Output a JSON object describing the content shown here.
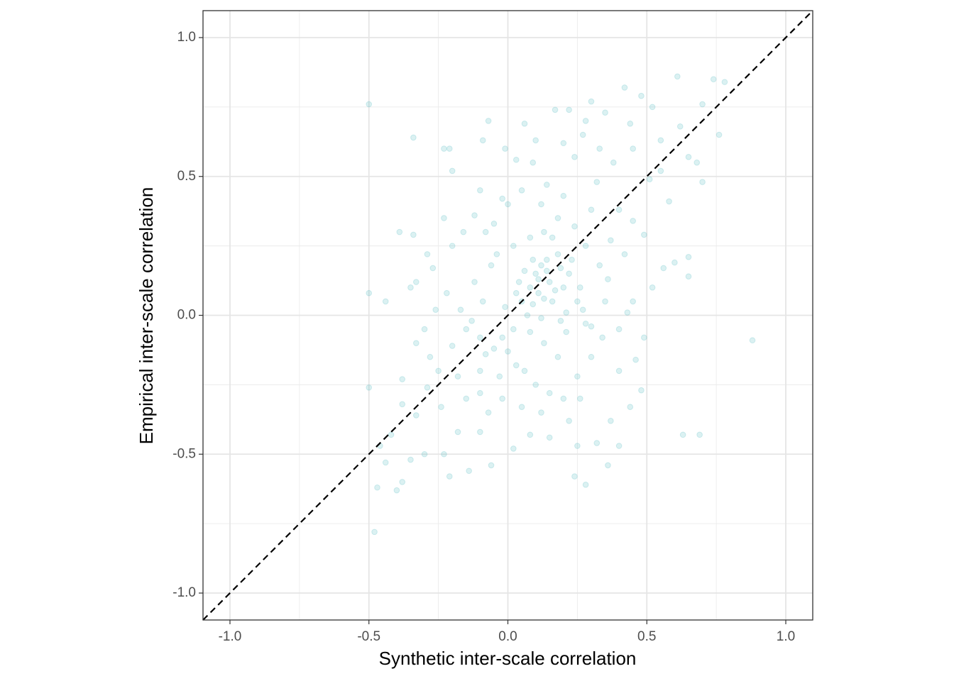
{
  "chart_data": {
    "type": "scatter",
    "x_label": "Synthetic inter-scale correlation",
    "y_label": "Empirical inter-scale correlation",
    "color": "#3aafb9",
    "opacity": 0.18,
    "grid": true,
    "xlim": [
      -1.097,
      1.097
    ],
    "ylim": [
      -1.097,
      1.097
    ],
    "xticks": [
      {
        "value": -1.0,
        "label": "-1.0"
      },
      {
        "value": -0.5,
        "label": "-0.5"
      },
      {
        "value": 0.0,
        "label": "0.0"
      },
      {
        "value": 0.5,
        "label": "0.5"
      },
      {
        "value": 1.0,
        "label": "1.0"
      }
    ],
    "yticks": [
      {
        "value": -1.0,
        "label": "-1.0"
      },
      {
        "value": -0.5,
        "label": "-0.5"
      },
      {
        "value": 0.0,
        "label": "0.0"
      },
      {
        "value": 0.5,
        "label": "0.5"
      },
      {
        "value": 1.0,
        "label": "1.0"
      }
    ],
    "x_minor_grid": [
      -0.75,
      -0.25,
      0.25,
      0.75
    ],
    "y_minor_grid": [
      -0.75,
      -0.25,
      0.25,
      0.75
    ],
    "reference_line": {
      "slope": 1,
      "intercept": 0,
      "style": "dashed"
    },
    "x": [
      -0.5,
      -0.34,
      0.88,
      -0.48,
      -0.5,
      -0.5,
      0.63,
      0.69,
      0.78,
      0.61,
      0.74,
      0.7,
      0.76,
      0.68,
      0.7,
      0.58,
      0.65,
      0.65,
      0.48,
      0.42,
      0.3,
      0.17,
      0.22,
      0.35,
      0.06,
      0.24,
      -0.07,
      -0.09,
      -0.23,
      -0.21,
      -0.2,
      -0.34,
      -0.23,
      -0.12,
      -0.05,
      0.0,
      0.03,
      0.09,
      0.14,
      0.2,
      0.33,
      0.45,
      0.51,
      0.55,
      0.38,
      0.4,
      0.45,
      0.49,
      0.56,
      0.6,
      0.65,
      0.52,
      0.45,
      0.43,
      0.4,
      0.49,
      0.46,
      0.4,
      0.44,
      0.48,
      0.37,
      0.4,
      0.32,
      0.25,
      0.24,
      0.28,
      0.36,
      0.15,
      0.08,
      0.02,
      -0.1,
      -0.18,
      -0.23,
      -0.21,
      -0.14,
      -0.06,
      -0.3,
      -0.35,
      -0.38,
      -0.4,
      -0.44,
      -0.47,
      -0.42,
      -0.38,
      -0.33,
      -0.29,
      -0.25,
      -0.28,
      -0.38,
      -0.46,
      -0.2,
      -0.15,
      -0.17,
      -0.22,
      -0.27,
      -0.33,
      -0.35,
      -0.44,
      -0.39,
      -0.29,
      0.1,
      0.12,
      0.15,
      0.08,
      0.14,
      0.18,
      0.11,
      0.05,
      0.2,
      0.22,
      0.16,
      0.25,
      0.28,
      0.3,
      0.26,
      0.19,
      0.12,
      0.07,
      0.02,
      -0.02,
      -0.05,
      -0.08,
      0.0,
      0.03,
      0.06,
      -0.03,
      -0.1,
      0.1,
      0.15,
      0.2,
      0.25,
      0.3,
      0.34,
      0.35,
      0.33,
      0.28,
      0.24,
      0.18,
      0.13,
      0.08,
      0.02,
      -0.04,
      -0.08,
      -0.06,
      -0.12,
      -0.09,
      -0.13,
      -0.01,
      0.04,
      0.09,
      0.3,
      0.37,
      0.42,
      0.36,
      0.26,
      0.22,
      0.12,
      0.05,
      -0.02,
      -0.07,
      -0.15,
      -0.18,
      -0.24,
      -0.1,
      0.18,
      0.13,
      0.08,
      0.21,
      0.27,
      0.16,
      0.12,
      0.05,
      -0.02,
      -0.1,
      -0.16,
      -0.2,
      -0.26,
      -0.3,
      -0.33,
      -0.1,
      0.14,
      0.11,
      0.17,
      0.09,
      0.23,
      0.06,
      0.19,
      0.13,
      0.03,
      0.21,
      0.32,
      0.27,
      0.2,
      0.44,
      0.55,
      0.52,
      0.62,
      0.28,
      -0.01,
      0.1
    ],
    "y": [
      0.76,
      0.64,
      -0.09,
      -0.78,
      -0.26,
      0.08,
      -0.43,
      -0.43,
      0.84,
      0.86,
      0.85,
      0.76,
      0.65,
      0.55,
      0.48,
      0.41,
      0.21,
      0.57,
      0.79,
      0.82,
      0.77,
      0.74,
      0.74,
      0.73,
      0.69,
      0.57,
      0.7,
      0.63,
      0.6,
      0.6,
      0.52,
      0.29,
      0.35,
      0.36,
      0.33,
      0.4,
      0.56,
      0.55,
      0.47,
      0.43,
      0.6,
      0.6,
      0.49,
      0.52,
      0.55,
      0.38,
      0.34,
      0.29,
      0.17,
      0.19,
      0.14,
      0.1,
      0.05,
      0.01,
      -0.05,
      -0.08,
      -0.16,
      -0.2,
      -0.33,
      -0.27,
      -0.38,
      -0.47,
      -0.46,
      -0.47,
      -0.58,
      -0.61,
      -0.54,
      -0.44,
      -0.43,
      -0.48,
      -0.42,
      -0.42,
      -0.5,
      -0.58,
      -0.56,
      -0.54,
      -0.5,
      -0.52,
      -0.6,
      -0.63,
      -0.53,
      -0.62,
      -0.43,
      -0.32,
      -0.36,
      -0.26,
      -0.2,
      -0.15,
      -0.23,
      -0.47,
      -0.11,
      -0.05,
      0.02,
      0.08,
      0.17,
      0.12,
      0.1,
      0.05,
      0.3,
      0.22,
      0.15,
      0.18,
      0.12,
      0.1,
      0.2,
      0.22,
      0.08,
      0.05,
      0.1,
      0.15,
      0.05,
      0.05,
      -0.03,
      -0.04,
      0.1,
      -0.02,
      -0.01,
      0.0,
      -0.05,
      -0.08,
      -0.12,
      -0.14,
      -0.13,
      -0.18,
      -0.2,
      -0.22,
      -0.2,
      -0.25,
      -0.28,
      -0.3,
      -0.22,
      -0.15,
      -0.08,
      0.05,
      0.18,
      0.25,
      0.32,
      0.35,
      0.3,
      0.28,
      0.25,
      0.22,
      0.3,
      0.18,
      0.12,
      0.05,
      -0.02,
      0.03,
      0.12,
      0.2,
      0.38,
      0.27,
      0.22,
      0.13,
      -0.3,
      -0.38,
      -0.35,
      -0.33,
      -0.3,
      -0.35,
      -0.3,
      -0.22,
      -0.33,
      -0.28,
      -0.15,
      -0.1,
      -0.06,
      -0.06,
      0.02,
      0.28,
      0.4,
      0.45,
      0.42,
      0.45,
      0.3,
      0.25,
      0.02,
      -0.05,
      -0.1,
      -0.08,
      0.16,
      0.13,
      0.09,
      0.04,
      0.2,
      0.16,
      0.17,
      0.06,
      0.08,
      0.01,
      0.48,
      0.65,
      0.62,
      0.69,
      0.63,
      0.75,
      0.68,
      0.7,
      0.6,
      0.63
    ]
  }
}
